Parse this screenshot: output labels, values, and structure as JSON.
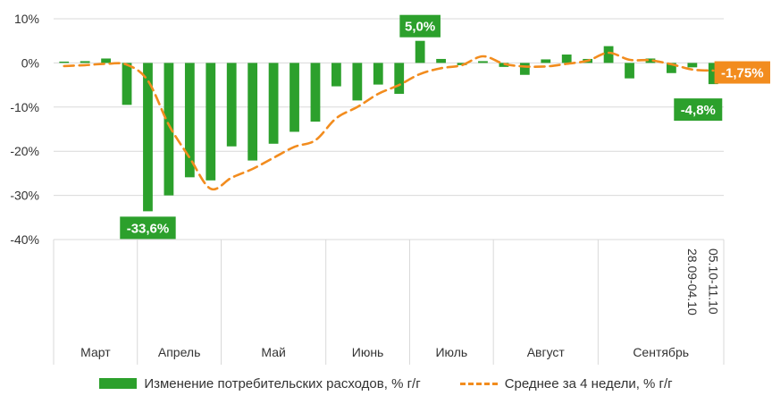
{
  "colors": {
    "bar": "#2ca02c",
    "line": "#f28c1e",
    "grid": "#d9d9d9",
    "text": "#333333"
  },
  "legend": {
    "bar_label": "Изменение потребительских расходов, % г/г",
    "line_label": "Среднее за 4 недели, % г/г"
  },
  "chart_data": {
    "type": "bar",
    "title": "",
    "xlabel": "",
    "ylabel": "",
    "ylim": [
      -40,
      10
    ],
    "y_ticks": [
      "10%",
      "0%",
      "-10%",
      "-20%",
      "-30%",
      "-40%"
    ],
    "y_tick_values": [
      10,
      0,
      -10,
      -20,
      -30,
      -40
    ],
    "grid": "horizontal",
    "legend_position": "bottom",
    "month_labels": [
      "Март",
      "Апрель",
      "Май",
      "Июнь",
      "Июль",
      "Август",
      "Сентябрь"
    ],
    "month_spans": [
      [
        0,
        3
      ],
      [
        4,
        7
      ],
      [
        8,
        12
      ],
      [
        13,
        16
      ],
      [
        17,
        20
      ],
      [
        21,
        25
      ],
      [
        26,
        31
      ]
    ],
    "week_labels": [
      "28.09-04.10",
      "05.10-11.10"
    ],
    "week_label_indices": [
      30,
      31
    ],
    "series": [
      {
        "name": "Изменение потребительских расходов, % г/г",
        "type": "bar",
        "values": [
          0.3,
          0.4,
          1.0,
          -9.5,
          -33.6,
          -30.0,
          -25.9,
          -26.6,
          -18.9,
          -22.1,
          -18.3,
          -15.6,
          -13.3,
          -5.3,
          -8.5,
          -4.9,
          -7.0,
          5.0,
          0.9,
          -0.5,
          0.4,
          -0.9,
          -2.7,
          0.8,
          1.9,
          0.9,
          3.8,
          -3.5,
          1.0,
          -2.3,
          -1.0,
          -4.8
        ]
      },
      {
        "name": "Среднее за 4 недели, % г/г",
        "type": "line",
        "values": [
          -0.7,
          -0.5,
          -0.2,
          -0.4,
          -4.0,
          -14.0,
          -21.5,
          -28.5,
          -26.0,
          -24.0,
          -21.5,
          -19.0,
          -17.5,
          -12.5,
          -10.0,
          -7.0,
          -5.0,
          -2.5,
          -1.2,
          -0.5,
          1.5,
          -0.2,
          -0.8,
          -0.8,
          -0.2,
          0.5,
          2.3,
          0.7,
          0.6,
          -0.3,
          -1.5,
          -1.75
        ]
      }
    ],
    "annotations": [
      {
        "text": "-33,6%",
        "index": 4,
        "series": 0,
        "style": "bar"
      },
      {
        "text": "5,0%",
        "index": 17,
        "series": 0,
        "style": "bar"
      },
      {
        "text": "-4,8%",
        "index": 31,
        "series": 0,
        "style": "bar"
      },
      {
        "text": "-1,75%",
        "index": 31,
        "series": 1,
        "style": "line"
      }
    ]
  }
}
